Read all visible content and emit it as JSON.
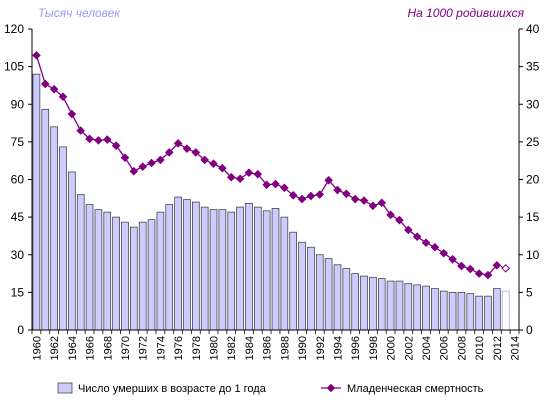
{
  "chart_data": {
    "type": "bar+line",
    "left_axis_title": "Тысяч человек",
    "right_axis_title": "На 1000 родившихся",
    "ylim_left": [
      0,
      120
    ],
    "ylim_right": [
      0,
      40
    ],
    "yticks_left": [
      "0",
      "15",
      "30",
      "45",
      "60",
      "75",
      "90",
      "105",
      "120"
    ],
    "yticks_right": [
      "0",
      "5",
      "10",
      "15",
      "20",
      "25",
      "30",
      "35",
      "40"
    ],
    "x_tick_labels": [
      "1960",
      "1962",
      "1964",
      "1966",
      "1968",
      "1970",
      "1972",
      "1974",
      "1976",
      "1978",
      "1980",
      "1982",
      "1984",
      "1986",
      "1988",
      "1990",
      "1992",
      "1994",
      "1996",
      "1998",
      "2000",
      "2002",
      "2004",
      "2006",
      "2008",
      "2010",
      "2012",
      "2014"
    ],
    "years": [
      1960,
      1961,
      1962,
      1963,
      1964,
      1965,
      1966,
      1967,
      1968,
      1969,
      1970,
      1971,
      1972,
      1973,
      1974,
      1975,
      1976,
      1977,
      1978,
      1979,
      1980,
      1981,
      1982,
      1983,
      1984,
      1985,
      1986,
      1987,
      1988,
      1989,
      1990,
      1991,
      1992,
      1993,
      1994,
      1995,
      1996,
      1997,
      1998,
      1999,
      2000,
      2001,
      2002,
      2003,
      2004,
      2005,
      2006,
      2007,
      2008,
      2009,
      2010,
      2011,
      2012,
      2013
    ],
    "series": [
      {
        "name": "Число умерших в возрасте до 1 года",
        "axis": "left",
        "color": "#ccccff",
        "values": [
          102,
          88,
          81,
          73,
          63,
          54,
          50,
          48,
          47,
          45,
          43,
          41,
          43,
          44,
          47,
          50,
          53,
          52,
          51,
          49,
          48,
          48,
          47,
          49,
          50.5,
          49,
          47.5,
          48.5,
          45,
          39,
          35,
          33,
          30,
          28.5,
          26,
          24.5,
          22.5,
          21.5,
          21,
          20.5,
          19.5,
          19.5,
          18.5,
          18,
          17.5,
          16.5,
          15.5,
          15,
          15,
          14.5,
          13.5,
          13.5,
          16.5,
          15.5
        ],
        "last_estimate": true
      },
      {
        "name": "Младенческая смертность",
        "axis": "right",
        "color": "#800080",
        "values": [
          36.5,
          32.7,
          32,
          31,
          28.7,
          26.5,
          25.4,
          25.2,
          25.3,
          24.5,
          22.9,
          21.1,
          21.7,
          22.2,
          22.6,
          23.6,
          24.8,
          24.1,
          23.6,
          22.6,
          22.1,
          21.5,
          20.3,
          20.1,
          20.9,
          20.7,
          19.3,
          19.4,
          18.9,
          17.9,
          17.4,
          17.8,
          18.0,
          19.9,
          18.6,
          18.1,
          17.4,
          17.2,
          16.5,
          16.9,
          15.3,
          14.6,
          13.3,
          12.4,
          11.6,
          11.0,
          10.2,
          9.4,
          8.5,
          8.1,
          7.5,
          7.3,
          8.6,
          8.2
        ],
        "last_estimate": true
      }
    ],
    "grid": false,
    "legend_position": "bottom"
  },
  "legend": {
    "bars_label": "Число умерших в возрасте до 1 года",
    "line_label": "Младенческая смертность"
  }
}
